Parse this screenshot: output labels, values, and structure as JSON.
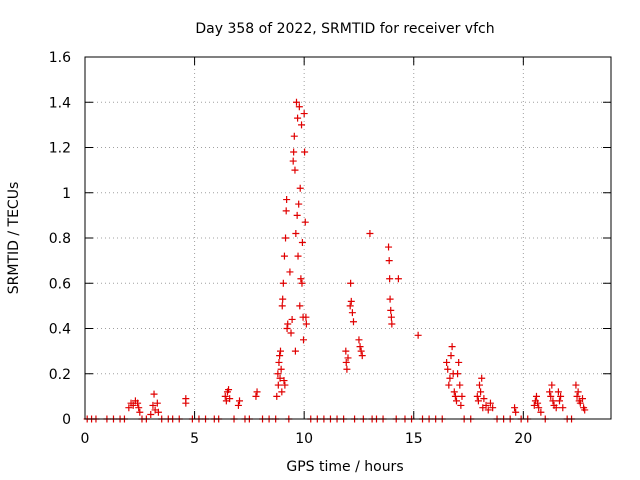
{
  "chart_data": {
    "type": "scatter",
    "title": "Day 358 of 2022, SRMTID for receiver vfch",
    "xlabel": "GPS time / hours",
    "ylabel": "SRMTID / TECUs",
    "xlim": [
      0,
      24
    ],
    "ylim": [
      0,
      1.6
    ],
    "xticks": [
      0,
      5,
      10,
      15,
      20
    ],
    "yticks": [
      0,
      0.2,
      0.4,
      0.6,
      0.8,
      1,
      1.2,
      1.4,
      1.6
    ],
    "ytick_labels": [
      "0",
      "0.2",
      "0.4",
      "0.6",
      "0.8",
      "1",
      "1.2",
      "1.4",
      "1.6"
    ],
    "grid": true,
    "marker": "+",
    "color": "#e00000",
    "series": [
      {
        "name": "SRMTID",
        "points": [
          [
            0.1,
            0
          ],
          [
            0.3,
            0
          ],
          [
            0.5,
            0
          ],
          [
            1.0,
            0
          ],
          [
            1.3,
            0
          ],
          [
            1.6,
            0
          ],
          [
            1.8,
            0
          ],
          [
            2.0,
            0.05
          ],
          [
            2.1,
            0.07
          ],
          [
            2.2,
            0.06
          ],
          [
            2.3,
            0.08
          ],
          [
            2.4,
            0.07
          ],
          [
            2.45,
            0.05
          ],
          [
            2.5,
            0.03
          ],
          [
            2.6,
            0
          ],
          [
            2.8,
            0
          ],
          [
            3.0,
            0.02
          ],
          [
            3.1,
            0.06
          ],
          [
            3.15,
            0.11
          ],
          [
            3.2,
            0.04
          ],
          [
            3.3,
            0.07
          ],
          [
            3.35,
            0.03
          ],
          [
            3.5,
            0
          ],
          [
            3.8,
            0
          ],
          [
            4.0,
            0
          ],
          [
            4.3,
            0
          ],
          [
            4.6,
            0.09
          ],
          [
            4.6,
            0.07
          ],
          [
            4.9,
            0
          ],
          [
            5.2,
            0
          ],
          [
            5.5,
            0
          ],
          [
            5.9,
            0
          ],
          [
            6.1,
            0
          ],
          [
            6.4,
            0.1
          ],
          [
            6.45,
            0.08
          ],
          [
            6.5,
            0.12
          ],
          [
            6.55,
            0.13
          ],
          [
            6.6,
            0.09
          ],
          [
            6.8,
            0
          ],
          [
            7.0,
            0.06
          ],
          [
            7.05,
            0.08
          ],
          [
            7.3,
            0
          ],
          [
            7.5,
            0
          ],
          [
            7.8,
            0.1
          ],
          [
            7.85,
            0.12
          ],
          [
            8.1,
            0
          ],
          [
            8.4,
            0
          ],
          [
            8.7,
            0
          ],
          [
            8.75,
            0.1
          ],
          [
            8.8,
            0.2
          ],
          [
            8.82,
            0.15
          ],
          [
            8.85,
            0.25
          ],
          [
            8.88,
            0.28
          ],
          [
            8.9,
            0.18
          ],
          [
            8.92,
            0.3
          ],
          [
            8.95,
            0.22
          ],
          [
            8.98,
            0.12
          ],
          [
            9.0,
            0.5
          ],
          [
            9.02,
            0.53
          ],
          [
            9.05,
            0.6
          ],
          [
            9.08,
            0.17
          ],
          [
            9.1,
            0.72
          ],
          [
            9.12,
            0.15
          ],
          [
            9.15,
            0.8
          ],
          [
            9.18,
            0.92
          ],
          [
            9.2,
            0.97
          ],
          [
            9.22,
            0.4
          ],
          [
            9.25,
            0.42
          ],
          [
            9.3,
            0
          ],
          [
            9.35,
            0.65
          ],
          [
            9.4,
            0.38
          ],
          [
            9.45,
            0.44
          ],
          [
            9.5,
            1.14
          ],
          [
            9.52,
            1.18
          ],
          [
            9.55,
            1.25
          ],
          [
            9.58,
            1.1
          ],
          [
            9.6,
            0.3
          ],
          [
            9.62,
            0.82
          ],
          [
            9.65,
            1.4
          ],
          [
            9.68,
            0.9
          ],
          [
            9.7,
            1.33
          ],
          [
            9.72,
            0.72
          ],
          [
            9.75,
            0.95
          ],
          [
            9.78,
            1.38
          ],
          [
            9.8,
            0.5
          ],
          [
            9.82,
            1.02
          ],
          [
            9.85,
            0.62
          ],
          [
            9.88,
            1.3
          ],
          [
            9.9,
            0.6
          ],
          [
            9.92,
            0.78
          ],
          [
            9.95,
            0.45
          ],
          [
            9.97,
            0.35
          ],
          [
            10.0,
            1.35
          ],
          [
            10.02,
            1.18
          ],
          [
            10.05,
            0.87
          ],
          [
            10.08,
            0.45
          ],
          [
            10.1,
            0.42
          ],
          [
            10.3,
            0
          ],
          [
            10.6,
            0
          ],
          [
            10.9,
            0
          ],
          [
            11.2,
            0
          ],
          [
            11.5,
            0
          ],
          [
            11.8,
            0
          ],
          [
            11.9,
            0.3
          ],
          [
            11.92,
            0.25
          ],
          [
            11.95,
            0.22
          ],
          [
            12.0,
            0.27
          ],
          [
            12.1,
            0.5
          ],
          [
            12.12,
            0.6
          ],
          [
            12.15,
            0.52
          ],
          [
            12.2,
            0.47
          ],
          [
            12.25,
            0.43
          ],
          [
            12.3,
            0
          ],
          [
            12.5,
            0.35
          ],
          [
            12.55,
            0.32
          ],
          [
            12.6,
            0.3
          ],
          [
            12.65,
            0.28
          ],
          [
            12.7,
            0
          ],
          [
            13.0,
            0.82
          ],
          [
            13.1,
            0
          ],
          [
            13.3,
            0
          ],
          [
            13.6,
            0
          ],
          [
            13.85,
            0.76
          ],
          [
            13.88,
            0.7
          ],
          [
            13.9,
            0.62
          ],
          [
            13.92,
            0.53
          ],
          [
            13.95,
            0.48
          ],
          [
            13.98,
            0.45
          ],
          [
            14.0,
            0.42
          ],
          [
            14.2,
            0
          ],
          [
            14.3,
            0.62
          ],
          [
            14.6,
            0
          ],
          [
            14.9,
            0
          ],
          [
            15.2,
            0.37
          ],
          [
            15.4,
            0
          ],
          [
            15.7,
            0
          ],
          [
            16.0,
            0
          ],
          [
            16.3,
            0
          ],
          [
            16.5,
            0.25
          ],
          [
            16.55,
            0.22
          ],
          [
            16.6,
            0.15
          ],
          [
            16.65,
            0.18
          ],
          [
            16.7,
            0.28
          ],
          [
            16.75,
            0.32
          ],
          [
            16.8,
            0.2
          ],
          [
            16.85,
            0.12
          ],
          [
            16.9,
            0.1
          ],
          [
            16.95,
            0.08
          ],
          [
            17.0,
            0.2
          ],
          [
            17.05,
            0.25
          ],
          [
            17.1,
            0.15
          ],
          [
            17.15,
            0.06
          ],
          [
            17.2,
            0.1
          ],
          [
            17.3,
            0
          ],
          [
            17.6,
            0
          ],
          [
            17.9,
            0.1
          ],
          [
            17.95,
            0.08
          ],
          [
            18.0,
            0.15
          ],
          [
            18.05,
            0.12
          ],
          [
            18.1,
            0.18
          ],
          [
            18.15,
            0.05
          ],
          [
            18.2,
            0.09
          ],
          [
            18.3,
            0.06
          ],
          [
            18.4,
            0.04
          ],
          [
            18.5,
            0.07
          ],
          [
            18.6,
            0.05
          ],
          [
            18.8,
            0
          ],
          [
            19.1,
            0
          ],
          [
            19.4,
            0
          ],
          [
            19.6,
            0.05
          ],
          [
            19.65,
            0.03
          ],
          [
            19.9,
            0
          ],
          [
            20.2,
            0
          ],
          [
            20.5,
            0.06
          ],
          [
            20.55,
            0.08
          ],
          [
            20.6,
            0.1
          ],
          [
            20.65,
            0.07
          ],
          [
            20.7,
            0.05
          ],
          [
            20.8,
            0.03
          ],
          [
            21.0,
            0
          ],
          [
            21.2,
            0.12
          ],
          [
            21.25,
            0.1
          ],
          [
            21.3,
            0.15
          ],
          [
            21.35,
            0.08
          ],
          [
            21.4,
            0.06
          ],
          [
            21.5,
            0.05
          ],
          [
            21.6,
            0.12
          ],
          [
            21.65,
            0.08
          ],
          [
            21.7,
            0.1
          ],
          [
            21.8,
            0.05
          ],
          [
            22.0,
            0
          ],
          [
            22.2,
            0
          ],
          [
            22.4,
            0.15
          ],
          [
            22.45,
            0.1
          ],
          [
            22.5,
            0.12
          ],
          [
            22.55,
            0.08
          ],
          [
            22.6,
            0.07
          ],
          [
            22.7,
            0.09
          ],
          [
            22.75,
            0.05
          ],
          [
            22.8,
            0.04
          ]
        ]
      }
    ]
  }
}
